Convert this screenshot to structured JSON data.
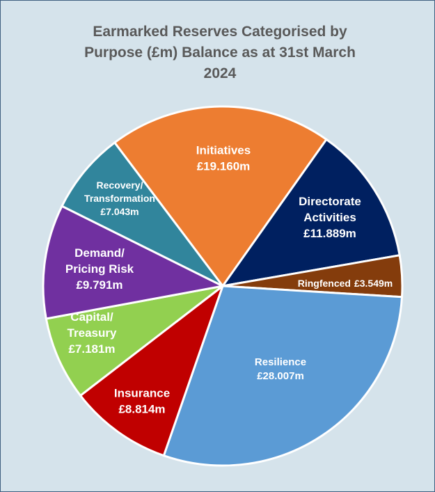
{
  "chart_data": {
    "type": "pie",
    "title": "Earmarked Reserves Categorised by Purpose (£m) Balance as at 31st March 2024",
    "categories": [
      [
        "Initiatives"
      ],
      [
        "Directorate",
        "Activities"
      ],
      [
        "Ringfenced"
      ],
      [
        "Resilience"
      ],
      [
        "Insurance"
      ],
      [
        "Capital/",
        "Treasury"
      ],
      [
        "Demand/",
        "Pricing Risk"
      ],
      [
        "Recovery/",
        "Transformation"
      ]
    ],
    "values": [
      19.16,
      11.889,
      3.549,
      28.007,
      8.814,
      7.181,
      9.791,
      7.043
    ],
    "value_labels": [
      "£19.160m",
      "£11.889m",
      "£3.549m",
      "£28.007m",
      "£8.814m",
      "£7.181m",
      "£9.791m",
      "£7.043m"
    ],
    "colors": [
      "#ed7d31",
      "#002060",
      "#843c0c",
      "#5b9bd5",
      "#c00000",
      "#92d050",
      "#7030a0",
      "#31859c"
    ]
  }
}
